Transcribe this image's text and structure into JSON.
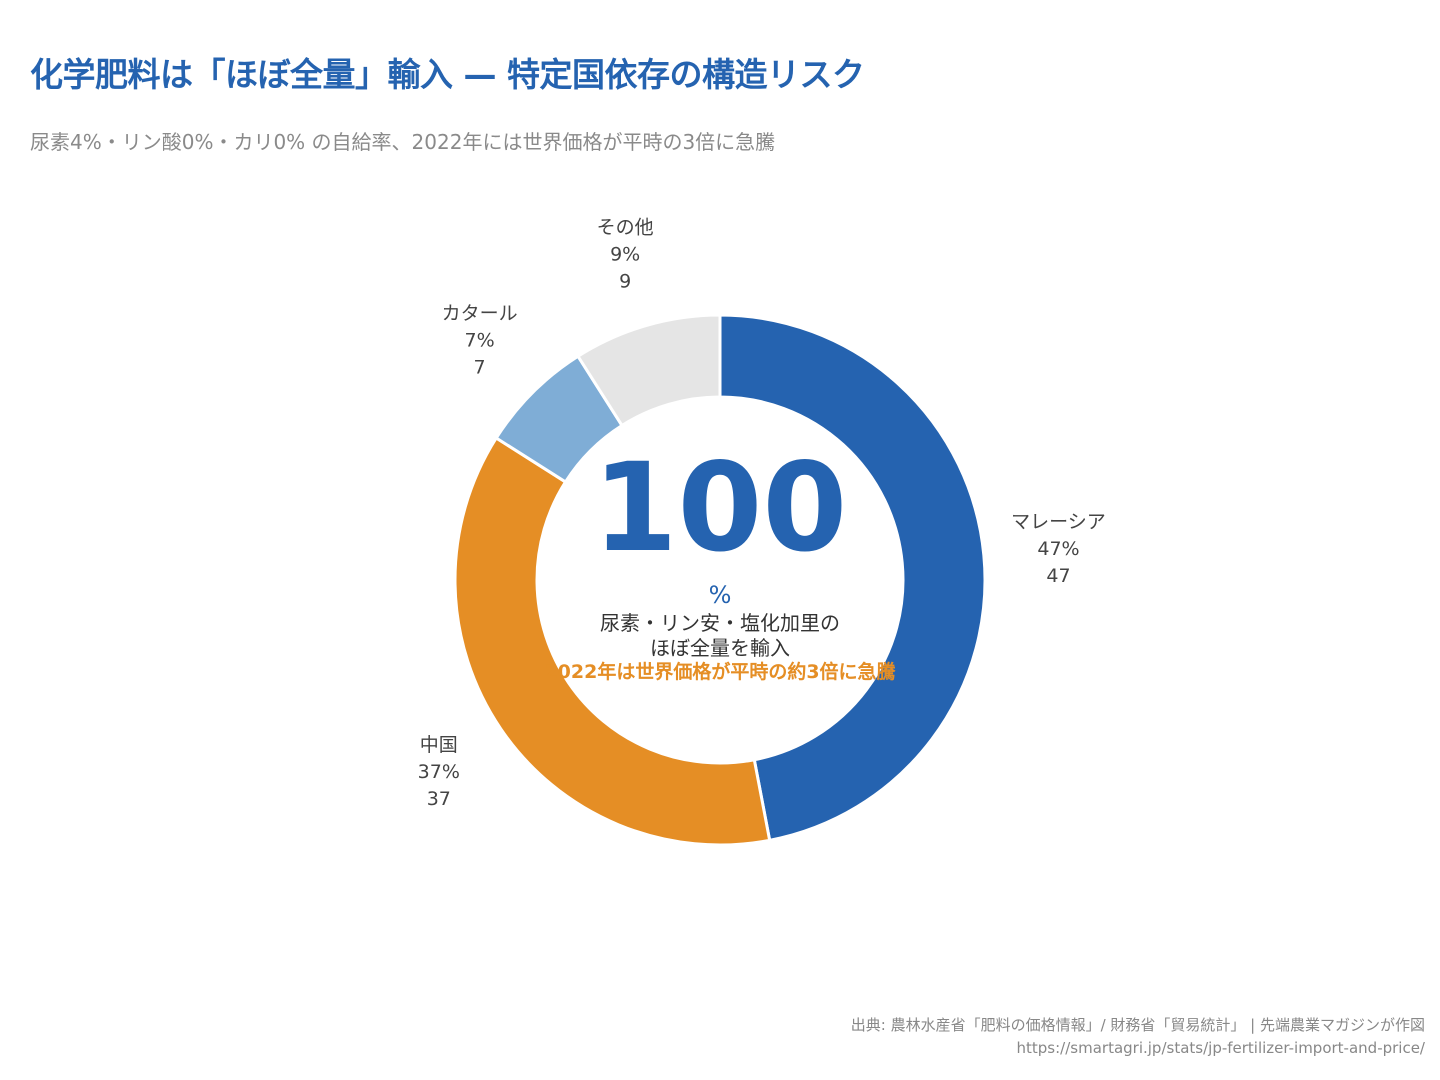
{
  "title": "化学肥料は「ほぼ全量」輸入 — 特定国依存の構造リスク",
  "subtitle": "尿素4%・リン酸0%・カリ0% の自給率、2022年には世界価格が平時の3倍に急騰",
  "center": {
    "value": "100",
    "unit": "%",
    "line1": "尿素・リン安・塩化加里の",
    "line2": "ほぼ全量を輸入",
    "highlight": "2022年は世界価格が平時の約3倍に急騰"
  },
  "colors": {
    "primary": "#2563b0",
    "accent": "#e58e25"
  },
  "chart_data": {
    "type": "pie",
    "donut": true,
    "categories": [
      "マレーシア",
      "中国",
      "カタール",
      "その他"
    ],
    "values": [
      47,
      37,
      7,
      9
    ],
    "percent_labels": [
      "47%",
      "37%",
      "7%",
      "9%"
    ],
    "value_labels": [
      "47",
      "37",
      "7",
      "9"
    ],
    "colors": [
      "#2563b0",
      "#e58e25",
      "#7fadd6",
      "#e5e5e5"
    ],
    "start": "top",
    "direction": "clockwise"
  },
  "source": {
    "line1": "出典: 農林水産省「肥料の価格情報」/ 財務省「貿易統計」 | 先端農業マガジンが作図",
    "line2": "https://smartagri.jp/stats/jp-fertilizer-import-and-price/"
  }
}
